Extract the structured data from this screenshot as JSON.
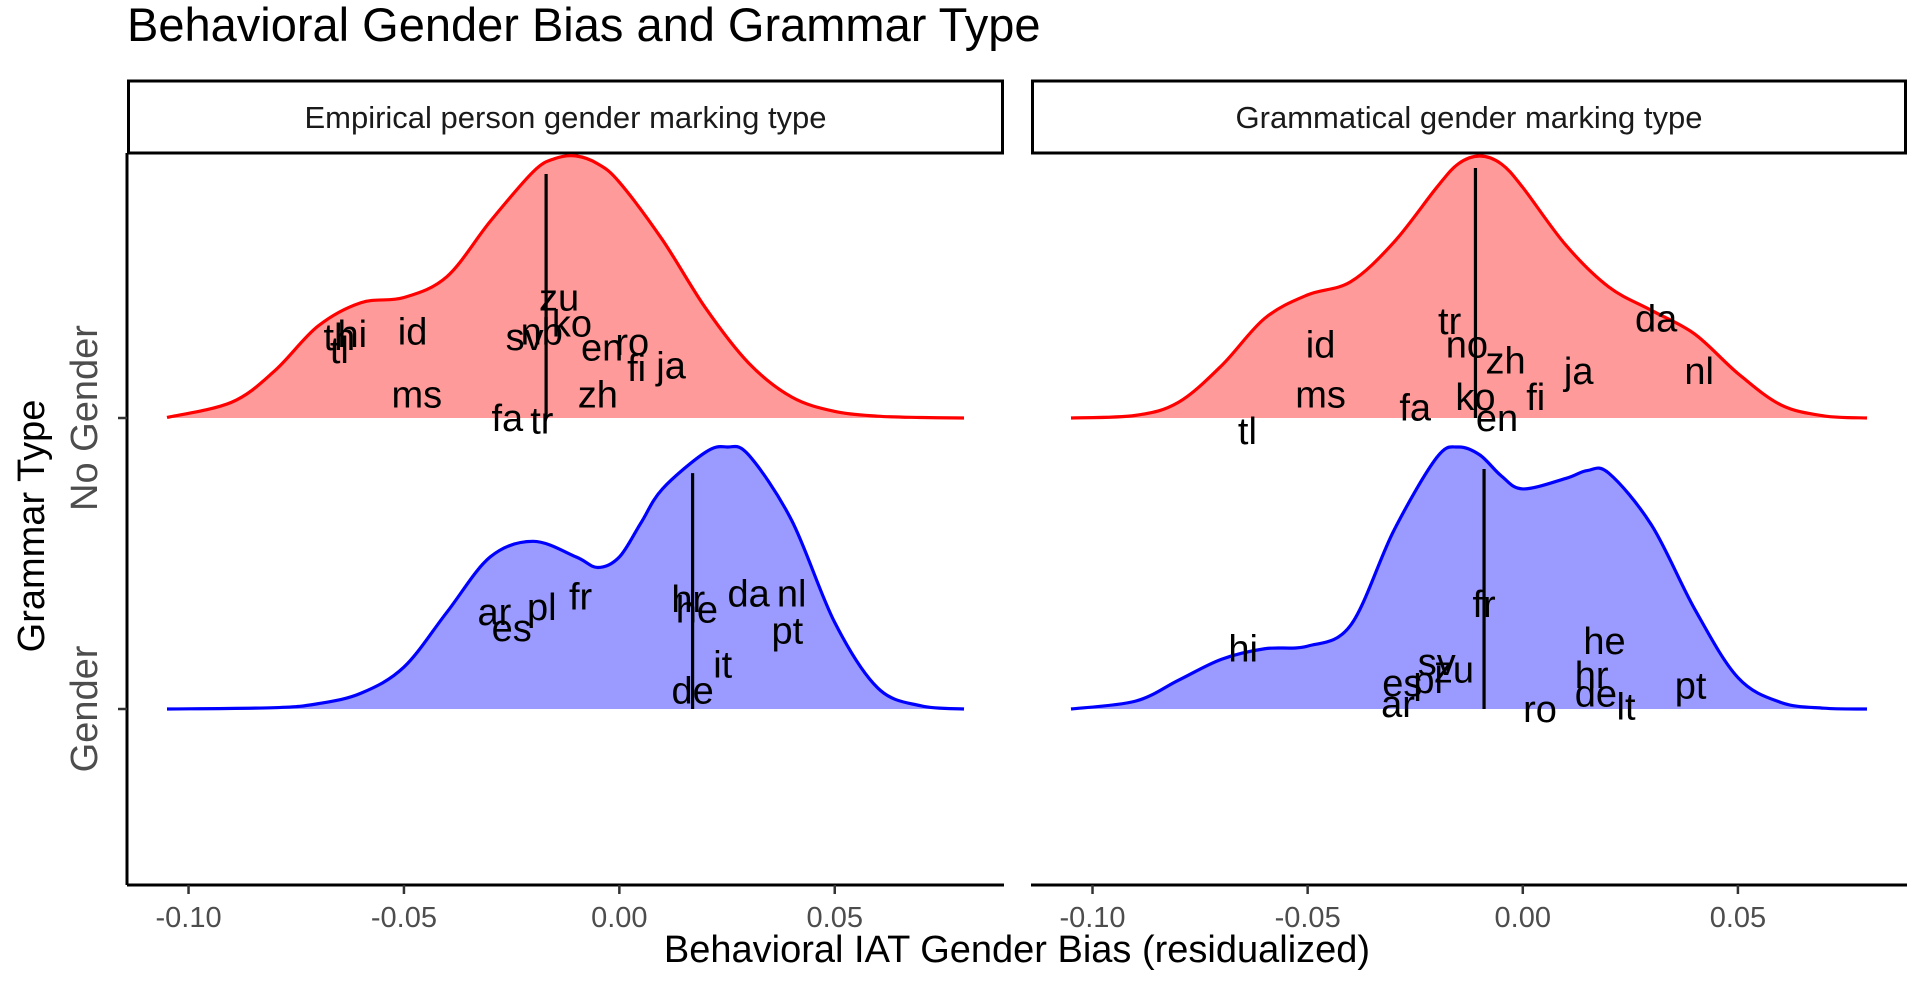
{
  "chart_data": {
    "type": "area",
    "title": "Behavioral Gender Bias and Grammar Type",
    "xlabel": "Behavioral IAT Gender Bias (residualized)",
    "ylabel": "Grammar Type",
    "xlim": [
      -0.105,
      0.08
    ],
    "x_ticks": [
      -0.1,
      -0.05,
      0.0,
      0.05
    ],
    "x_tick_labels": [
      "-0.10",
      "-0.05",
      "0.00",
      "0.05"
    ],
    "y_categories": [
      "No Gender",
      "Gender"
    ],
    "grid": false,
    "colors": {
      "No Gender": {
        "fill": "#FF9A9A",
        "line": "#FF0000"
      },
      "Gender": {
        "fill": "#9A9AFF",
        "line": "#0000FF"
      }
    },
    "panels": [
      {
        "strip_label": "Empirical person gender marking type",
        "groups": [
          {
            "name": "No Gender",
            "median": -0.017,
            "density_x": [
              -0.105,
              -0.09,
              -0.08,
              -0.07,
              -0.06,
              -0.05,
              -0.04,
              -0.03,
              -0.02,
              -0.015,
              -0.01,
              -0.005,
              0.0,
              0.01,
              0.02,
              0.03,
              0.04,
              0.05,
              0.06,
              0.07,
              0.08
            ],
            "density_y": [
              0.002,
              0.06,
              0.18,
              0.35,
              0.44,
              0.46,
              0.54,
              0.75,
              0.94,
              0.99,
              1.0,
              0.97,
              0.9,
              0.68,
              0.42,
              0.21,
              0.08,
              0.025,
              0.007,
              0.002,
              0.0
            ],
            "labels": [
              {
                "text": "zu",
                "x": -0.014,
                "y": 0.46
              },
              {
                "text": "nb",
                "x": -0.018,
                "y": 0.33
              },
              {
                "text": "ko",
                "x": -0.011,
                "y": 0.36
              },
              {
                "text": "sv",
                "x": -0.022,
                "y": 0.31
              },
              {
                "text": "en",
                "x": -0.004,
                "y": 0.27
              },
              {
                "text": "ro",
                "x": 0.003,
                "y": 0.29
              },
              {
                "text": "fi",
                "x": 0.004,
                "y": 0.19
              },
              {
                "text": "ja",
                "x": 0.012,
                "y": 0.2
              },
              {
                "text": "zh",
                "x": -0.005,
                "y": 0.09
              },
              {
                "text": "id",
                "x": -0.048,
                "y": 0.33
              },
              {
                "text": "th",
                "x": -0.065,
                "y": 0.31
              },
              {
                "text": "hi",
                "x": -0.062,
                "y": 0.32
              },
              {
                "text": "tl",
                "x": -0.065,
                "y": 0.26
              },
              {
                "text": "ms",
                "x": -0.047,
                "y": 0.09
              },
              {
                "text": "fa",
                "x": -0.026,
                "y": 0.0
              },
              {
                "text": "tr",
                "x": -0.018,
                "y": -0.01
              }
            ]
          },
          {
            "name": "Gender",
            "median": 0.017,
            "density_x": [
              -0.105,
              -0.08,
              -0.07,
              -0.06,
              -0.05,
              -0.04,
              -0.03,
              -0.02,
              -0.01,
              -0.005,
              0.0,
              0.005,
              0.01,
              0.02,
              0.025,
              0.03,
              0.04,
              0.05,
              0.06,
              0.07,
              0.08
            ],
            "density_y": [
              0.0,
              0.005,
              0.02,
              0.06,
              0.16,
              0.37,
              0.58,
              0.64,
              0.58,
              0.54,
              0.58,
              0.71,
              0.84,
              0.98,
              1.0,
              0.97,
              0.72,
              0.33,
              0.08,
              0.012,
              0.0
            ],
            "labels": [
              {
                "text": "ar",
                "x": -0.029,
                "y": 0.37
              },
              {
                "text": "pl",
                "x": -0.018,
                "y": 0.39
              },
              {
                "text": "fr",
                "x": -0.009,
                "y": 0.43
              },
              {
                "text": "es",
                "x": -0.025,
                "y": 0.31
              },
              {
                "text": "hr",
                "x": 0.016,
                "y": 0.42
              },
              {
                "text": "he",
                "x": 0.018,
                "y": 0.38
              },
              {
                "text": "da",
                "x": 0.03,
                "y": 0.44
              },
              {
                "text": "nl",
                "x": 0.04,
                "y": 0.44
              },
              {
                "text": "pt",
                "x": 0.039,
                "y": 0.3
              },
              {
                "text": "it",
                "x": 0.024,
                "y": 0.17
              },
              {
                "text": "de",
                "x": 0.017,
                "y": 0.07
              }
            ]
          }
        ]
      },
      {
        "strip_label": "Grammatical gender marking type",
        "groups": [
          {
            "name": "No Gender",
            "median": -0.011,
            "density_x": [
              -0.105,
              -0.09,
              -0.08,
              -0.07,
              -0.06,
              -0.05,
              -0.04,
              -0.03,
              -0.02,
              -0.015,
              -0.01,
              -0.005,
              0.0,
              0.01,
              0.02,
              0.03,
              0.04,
              0.05,
              0.06,
              0.07,
              0.08
            ],
            "density_y": [
              0.0,
              0.01,
              0.06,
              0.2,
              0.38,
              0.47,
              0.52,
              0.67,
              0.88,
              0.97,
              1.0,
              0.97,
              0.88,
              0.66,
              0.5,
              0.41,
              0.32,
              0.17,
              0.05,
              0.008,
              0.0
            ],
            "labels": [
              {
                "text": "tr",
                "x": -0.017,
                "y": 0.37
              },
              {
                "text": "no",
                "x": -0.013,
                "y": 0.28
              },
              {
                "text": "zh",
                "x": -0.004,
                "y": 0.22
              },
              {
                "text": "ja",
                "x": 0.013,
                "y": 0.18
              },
              {
                "text": "da",
                "x": 0.031,
                "y": 0.38
              },
              {
                "text": "nl",
                "x": 0.041,
                "y": 0.18
              },
              {
                "text": "id",
                "x": -0.047,
                "y": 0.28
              },
              {
                "text": "ms",
                "x": -0.047,
                "y": 0.09
              },
              {
                "text": "fa",
                "x": -0.025,
                "y": 0.04
              },
              {
                "text": "ko",
                "x": -0.011,
                "y": 0.08
              },
              {
                "text": "fi",
                "x": 0.003,
                "y": 0.08
              },
              {
                "text": "en",
                "x": -0.006,
                "y": 0.0
              },
              {
                "text": "tl",
                "x": -0.064,
                "y": -0.05
              }
            ]
          },
          {
            "name": "Gender",
            "median": -0.009,
            "density_x": [
              -0.105,
              -0.09,
              -0.08,
              -0.07,
              -0.06,
              -0.05,
              -0.04,
              -0.03,
              -0.02,
              -0.015,
              -0.01,
              -0.005,
              0.0,
              0.01,
              0.015,
              0.02,
              0.03,
              0.04,
              0.05,
              0.06,
              0.07,
              0.08
            ],
            "density_y": [
              0.0,
              0.03,
              0.11,
              0.19,
              0.23,
              0.24,
              0.32,
              0.68,
              0.96,
              1.0,
              0.97,
              0.89,
              0.84,
              0.88,
              0.91,
              0.9,
              0.7,
              0.38,
              0.12,
              0.025,
              0.003,
              0.0
            ],
            "labels": [
              {
                "text": "fr",
                "x": -0.009,
                "y": 0.4
              },
              {
                "text": "hi",
                "x": -0.065,
                "y": 0.23
              },
              {
                "text": "sv",
                "x": -0.02,
                "y": 0.18
              },
              {
                "text": "zu",
                "x": -0.016,
                "y": 0.15
              },
              {
                "text": "es",
                "x": -0.028,
                "y": 0.1
              },
              {
                "text": "pl",
                "x": -0.022,
                "y": 0.11
              },
              {
                "text": "ar",
                "x": -0.029,
                "y": 0.02
              },
              {
                "text": "ro",
                "x": 0.004,
                "y": 0.0
              },
              {
                "text": "he",
                "x": 0.019,
                "y": 0.26
              },
              {
                "text": "hr",
                "x": 0.016,
                "y": 0.13
              },
              {
                "text": "de",
                "x": 0.017,
                "y": 0.06
              },
              {
                "text": "lt",
                "x": 0.024,
                "y": 0.01
              },
              {
                "text": "pt",
                "x": 0.039,
                "y": 0.09
              }
            ]
          }
        ]
      }
    ]
  }
}
